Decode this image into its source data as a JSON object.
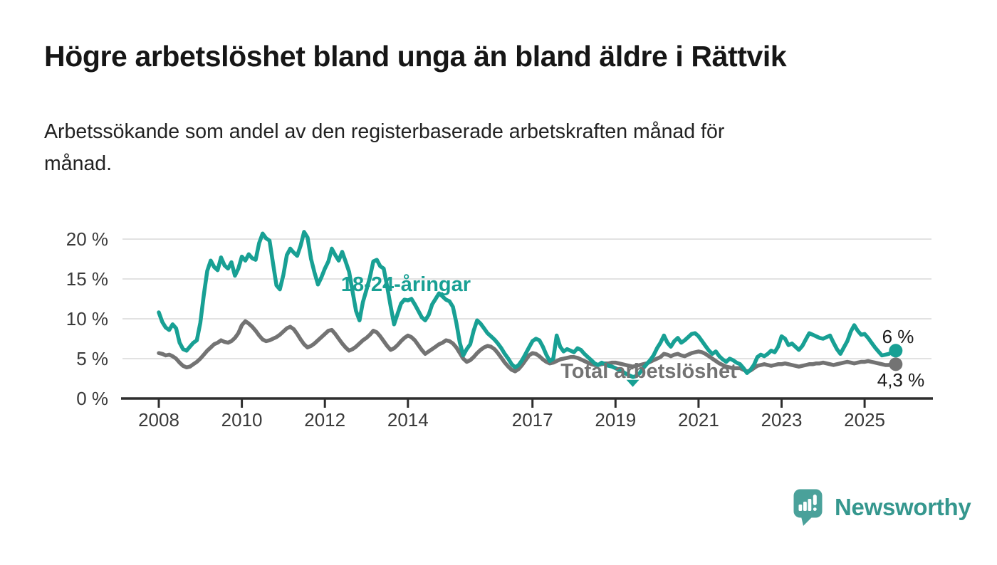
{
  "header": {
    "title": "Högre arbetslöshet bland unga än bland äldre i Rättvik",
    "subtitle": "Arbetssökande som andel av den registerbaserade arbetskraften månad för månad.",
    "subtitle_lines": [
      "Arbetssökande som andel av den registerbaserade arbetskraften månad för",
      "månad."
    ]
  },
  "chart_data": {
    "type": "line",
    "unit": "%",
    "frequency": "monthly",
    "x_start": "2008-01",
    "x_end": "2025-10",
    "ylim": [
      0,
      21.5
    ],
    "grid": "horizontal",
    "legend_position": "inline-labels",
    "colors": {
      "young": "#18A094",
      "total": "#737373",
      "gridline": "#D9D9D9",
      "axis": "#2E2E2E",
      "tick_label": "#3A3A3A",
      "end_label": "#1A1A1A"
    },
    "yticks": [
      {
        "value": 0,
        "label": "0 %"
      },
      {
        "value": 5,
        "label": "5 %"
      },
      {
        "value": 10,
        "label": "10 %"
      },
      {
        "value": 15,
        "label": "15 %"
      },
      {
        "value": 20,
        "label": "20 %"
      }
    ],
    "xticks": [
      {
        "year": 2008,
        "label": "2008"
      },
      {
        "year": 2010,
        "label": "2010"
      },
      {
        "year": 2012,
        "label": "2012"
      },
      {
        "year": 2014,
        "label": "2014"
      },
      {
        "year": 2017,
        "label": "2017"
      },
      {
        "year": 2019,
        "label": "2019"
      },
      {
        "year": 2021,
        "label": "2021"
      },
      {
        "year": 2023,
        "label": "2023"
      },
      {
        "year": 2025,
        "label": "2025"
      }
    ],
    "series": [
      {
        "name": "18-24-åringar",
        "color": "#18A094",
        "end_label": "6 %",
        "end_value": 6.0,
        "values": [
          10.8,
          9.6,
          8.9,
          8.6,
          9.3,
          8.8,
          7.0,
          6.2,
          6.0,
          6.5,
          7.0,
          7.3,
          9.5,
          13.0,
          16.0,
          17.3,
          16.5,
          16.1,
          17.7,
          16.7,
          16.3,
          17.1,
          15.4,
          16.3,
          17.8,
          17.3,
          18.1,
          17.6,
          17.4,
          19.5,
          20.7,
          20.1,
          19.8,
          17.0,
          14.2,
          13.7,
          15.5,
          18.0,
          18.8,
          18.3,
          17.9,
          19.2,
          20.9,
          20.2,
          17.5,
          15.8,
          14.3,
          15.2,
          16.3,
          17.2,
          18.8,
          18.0,
          17.3,
          18.4,
          17.2,
          15.9,
          13.4,
          11.0,
          9.8,
          12.1,
          13.6,
          15.2,
          17.2,
          17.4,
          16.6,
          16.3,
          14.1,
          11.6,
          9.3,
          10.6,
          11.9,
          12.4,
          12.3,
          12.5,
          11.8,
          11.0,
          10.2,
          9.8,
          10.5,
          11.8,
          12.5,
          13.2,
          12.8,
          12.4,
          12.2,
          11.5,
          9.5,
          7.0,
          5.4,
          6.2,
          6.8,
          8.5,
          9.8,
          9.4,
          8.8,
          8.2,
          7.8,
          7.4,
          6.9,
          6.3,
          5.6,
          5.0,
          4.3,
          3.9,
          4.2,
          4.8,
          5.6,
          6.4,
          7.2,
          7.5,
          7.3,
          6.5,
          5.5,
          4.7,
          5.0,
          7.9,
          6.5,
          5.9,
          6.2,
          6.0,
          5.8,
          6.3,
          6.1,
          5.6,
          5.2,
          4.8,
          4.4,
          4.2,
          4.5,
          4.3,
          4.1,
          4.0,
          3.8,
          3.6,
          3.4,
          3.1,
          2.9,
          2.7,
          2.8,
          3.2,
          3.8,
          4.3,
          4.8,
          5.4,
          6.3,
          7.0,
          7.9,
          7.0,
          6.5,
          7.2,
          7.6,
          7.0,
          7.3,
          7.7,
          8.1,
          8.2,
          7.8,
          7.2,
          6.6,
          6.0,
          5.6,
          5.9,
          5.3,
          4.9,
          4.6,
          5.0,
          4.8,
          4.5,
          4.3,
          3.8,
          3.2,
          3.6,
          4.2,
          5.2,
          5.5,
          5.3,
          5.6,
          6.0,
          5.8,
          6.5,
          7.8,
          7.5,
          6.7,
          6.9,
          6.5,
          6.1,
          6.6,
          7.4,
          8.2,
          8.0,
          7.8,
          7.6,
          7.5,
          7.7,
          7.9,
          7.0,
          6.2,
          5.6,
          6.4,
          7.2,
          8.4,
          9.2,
          8.5,
          8.0,
          8.1,
          7.6,
          7.0,
          6.4,
          5.9,
          5.4,
          5.5,
          5.6,
          5.8,
          6.0
        ]
      },
      {
        "name": "Total arbetslöshet",
        "color": "#737373",
        "end_label": "4,3 %",
        "end_value": 4.3,
        "values": [
          5.7,
          5.6,
          5.4,
          5.5,
          5.3,
          5.0,
          4.5,
          4.1,
          3.9,
          4.0,
          4.3,
          4.6,
          5.0,
          5.5,
          6.0,
          6.4,
          6.8,
          7.0,
          7.3,
          7.1,
          7.0,
          7.2,
          7.6,
          8.2,
          9.2,
          9.7,
          9.4,
          9.0,
          8.5,
          7.9,
          7.4,
          7.2,
          7.3,
          7.5,
          7.7,
          8.0,
          8.4,
          8.8,
          9.0,
          8.7,
          8.1,
          7.4,
          6.8,
          6.4,
          6.6,
          6.9,
          7.3,
          7.7,
          8.1,
          8.5,
          8.6,
          8.1,
          7.5,
          6.9,
          6.4,
          6.0,
          6.2,
          6.5,
          6.9,
          7.3,
          7.6,
          8.0,
          8.5,
          8.3,
          7.8,
          7.2,
          6.6,
          6.1,
          6.3,
          6.7,
          7.2,
          7.6,
          7.9,
          7.7,
          7.3,
          6.7,
          6.1,
          5.6,
          5.9,
          6.2,
          6.5,
          6.8,
          7.0,
          7.3,
          7.2,
          6.9,
          6.4,
          5.7,
          5.0,
          4.6,
          4.8,
          5.2,
          5.7,
          6.1,
          6.4,
          6.6,
          6.5,
          6.2,
          5.7,
          5.1,
          4.5,
          4.0,
          3.6,
          3.4,
          3.7,
          4.2,
          4.8,
          5.4,
          5.7,
          5.6,
          5.3,
          4.9,
          4.6,
          4.4,
          4.5,
          4.7,
          4.9,
          5.0,
          5.1,
          5.2,
          5.2,
          5.1,
          4.9,
          4.7,
          4.5,
          4.3,
          4.2,
          4.2,
          4.3,
          4.4,
          4.4,
          4.5,
          4.5,
          4.4,
          4.3,
          4.2,
          4.1,
          4.0,
          4.1,
          4.2,
          4.3,
          4.4,
          4.6,
          4.8,
          5.0,
          5.2,
          5.6,
          5.5,
          5.3,
          5.5,
          5.6,
          5.4,
          5.3,
          5.5,
          5.7,
          5.8,
          5.9,
          5.8,
          5.6,
          5.3,
          5.0,
          4.7,
          4.4,
          4.2,
          4.0,
          3.9,
          3.8,
          3.8,
          3.8,
          3.6,
          3.4,
          3.5,
          3.8,
          4.1,
          4.2,
          4.3,
          4.2,
          4.1,
          4.2,
          4.3,
          4.3,
          4.4,
          4.3,
          4.2,
          4.1,
          4.0,
          4.1,
          4.2,
          4.3,
          4.3,
          4.4,
          4.4,
          4.5,
          4.4,
          4.3,
          4.2,
          4.3,
          4.4,
          4.5,
          4.6,
          4.5,
          4.4,
          4.5,
          4.6,
          4.6,
          4.7,
          4.6,
          4.5,
          4.4,
          4.3,
          4.2,
          4.2,
          4.4,
          4.3
        ]
      }
    ],
    "dip_marker": {
      "series_index": 0,
      "shape": "triangle-down"
    }
  },
  "footer": {
    "brand": "Newsworthy"
  }
}
